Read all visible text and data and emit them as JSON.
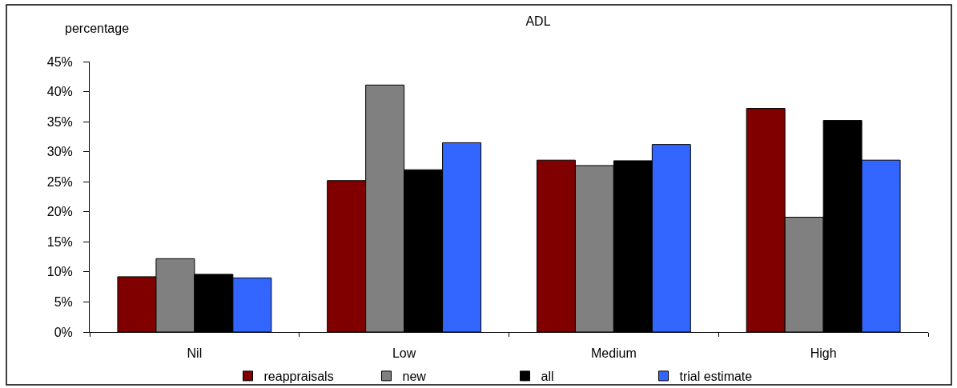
{
  "chart_data": {
    "type": "bar",
    "title": "ADL",
    "ylabel": "percentage",
    "categories": [
      "Nil",
      "Low",
      "Medium",
      "High"
    ],
    "series": [
      {
        "name": "reappraisals",
        "color": "#800000",
        "values": [
          9.2,
          25.2,
          28.6,
          37.2
        ]
      },
      {
        "name": "new",
        "color": "#808080",
        "values": [
          12.2,
          41.1,
          27.7,
          19.1
        ]
      },
      {
        "name": "all",
        "color": "#000000",
        "values": [
          9.6,
          27.0,
          28.5,
          35.2
        ]
      },
      {
        "name": "trial estimate",
        "color": "#3366ff",
        "values": [
          9.0,
          31.5,
          31.2,
          28.6
        ]
      }
    ],
    "ylim": [
      0,
      45
    ],
    "yticks": [
      {
        "value": 0,
        "label": "0%"
      },
      {
        "value": 5,
        "label": "5%"
      },
      {
        "value": 10,
        "label": "10%"
      },
      {
        "value": 15,
        "label": "15%"
      },
      {
        "value": 20,
        "label": "20%"
      },
      {
        "value": 25,
        "label": "25%"
      },
      {
        "value": 30,
        "label": "30%"
      },
      {
        "value": 35,
        "label": "35%"
      },
      {
        "value": 40,
        "label": "40%"
      },
      {
        "value": 45,
        "label": "45%"
      }
    ],
    "legend": "bottom"
  }
}
